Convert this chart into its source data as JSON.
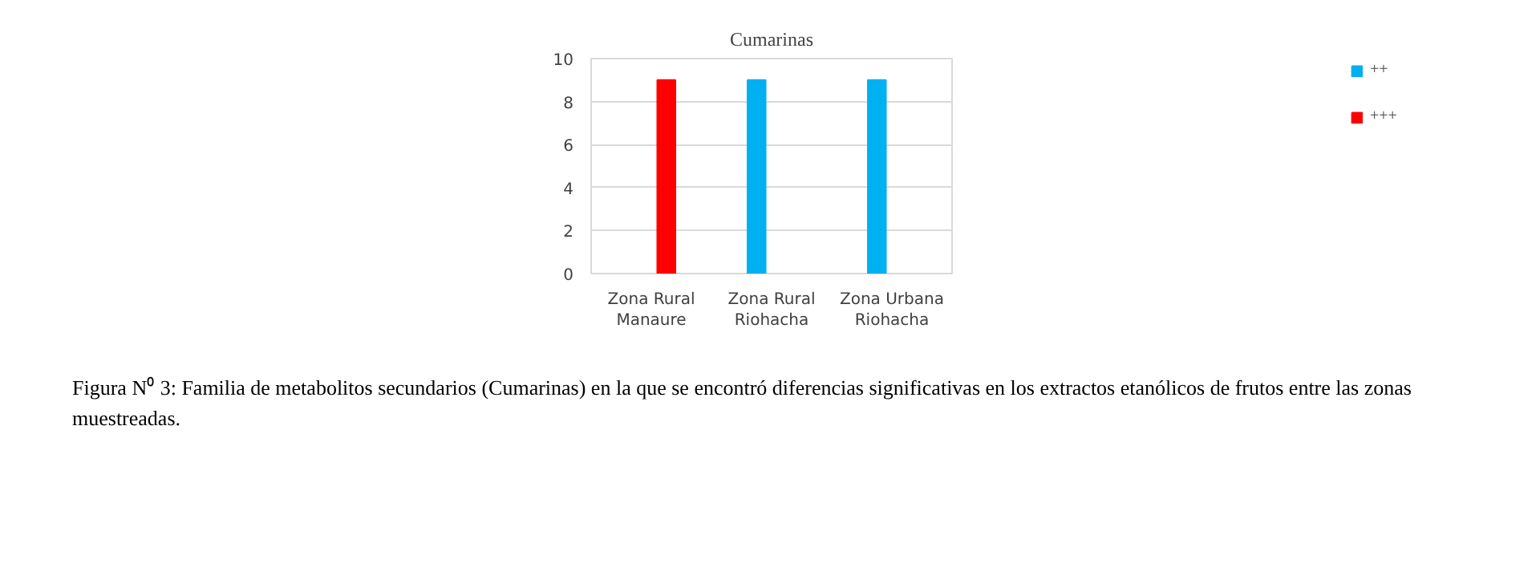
{
  "chart_data": {
    "type": "bar",
    "title": "Cumarinas",
    "categories": [
      "Zona Rural\nManaure",
      "Zona Rural\nRiohacha",
      "Zona Urbana\nRiohacha"
    ],
    "series": [
      {
        "name": "++",
        "color": "#00b0f0",
        "values": [
          null,
          9,
          9
        ]
      },
      {
        "name": "+++",
        "color": "#ff0000",
        "values": [
          9,
          null,
          null
        ]
      }
    ],
    "ylim": [
      0,
      10
    ],
    "yticks": [
      0,
      2,
      4,
      6,
      8,
      10
    ],
    "grid": "y",
    "legend": "top right",
    "annotations": [
      "Figura N⁰ 3: Familia de metabolitos secundarios (Cumarinas) en la que se encontró diferencias significativas en los extractos etanólicos de frutos entre las zonas muestreadas."
    ]
  }
}
